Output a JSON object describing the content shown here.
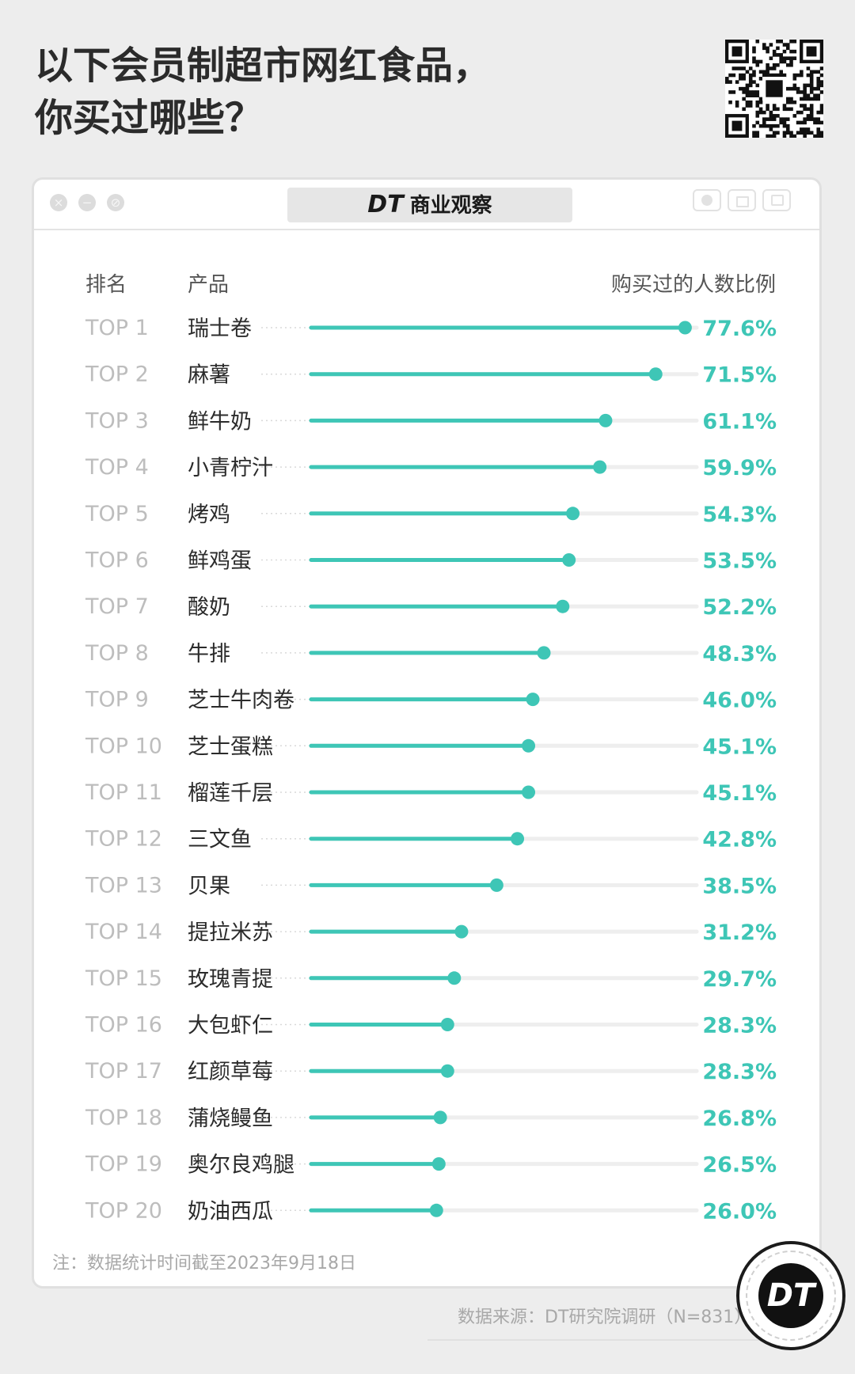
{
  "headline": {
    "line1": "以下会员制超市网红食品，",
    "line2": "你买过哪些？"
  },
  "window": {
    "brand_dt": "DT",
    "brand_name": "商业观察"
  },
  "colors": {
    "accent": "#3ec6b6",
    "track": "#eeeeee",
    "rank_text": "#bdbdbd",
    "label_text": "#2b2b2b",
    "header_text": "#555555"
  },
  "chart_data": {
    "type": "bar",
    "style": "lollipop-horizontal",
    "column_headers": {
      "rank": "排名",
      "product": "产品",
      "value": "购买过的人数比例"
    },
    "ranks": [
      "TOP 1",
      "TOP 2",
      "TOP 3",
      "TOP 4",
      "TOP 5",
      "TOP 6",
      "TOP 7",
      "TOP 8",
      "TOP 9",
      "TOP 10",
      "TOP 11",
      "TOP 12",
      "TOP 13",
      "TOP 14",
      "TOP 15",
      "TOP 16",
      "TOP 17",
      "TOP 18",
      "TOP 19",
      "TOP 20"
    ],
    "categories": [
      "瑞士卷",
      "麻薯",
      "鲜牛奶",
      "小青柠汁",
      "烤鸡",
      "鲜鸡蛋",
      "酸奶",
      "牛排",
      "芝士牛肉卷",
      "芝士蛋糕",
      "榴莲千层",
      "三文鱼",
      "贝果",
      "提拉米苏",
      "玫瑰青提",
      "大包虾仁",
      "红颜草莓",
      "蒲烧鳗鱼",
      "奥尔良鸡腿",
      "奶油西瓜"
    ],
    "values": [
      77.6,
      71.5,
      61.1,
      59.9,
      54.3,
      53.5,
      52.2,
      48.3,
      46.0,
      45.1,
      45.1,
      42.8,
      38.5,
      31.2,
      29.7,
      28.3,
      28.3,
      26.8,
      26.5,
      26.0
    ],
    "value_labels": [
      "77.6%",
      "71.5%",
      "61.1%",
      "59.9%",
      "54.3%",
      "53.5%",
      "52.2%",
      "48.3%",
      "46.0%",
      "45.1%",
      "45.1%",
      "42.8%",
      "38.5%",
      "31.2%",
      "29.7%",
      "28.3%",
      "28.3%",
      "26.8%",
      "26.5%",
      "26.0%"
    ],
    "xlim": [
      0,
      80
    ],
    "grid": false
  },
  "footer": {
    "note": "注：数据统计时间截至2023年9月18日",
    "source": "数据来源：DT研究院调研（N=831）",
    "badge": "DT"
  }
}
